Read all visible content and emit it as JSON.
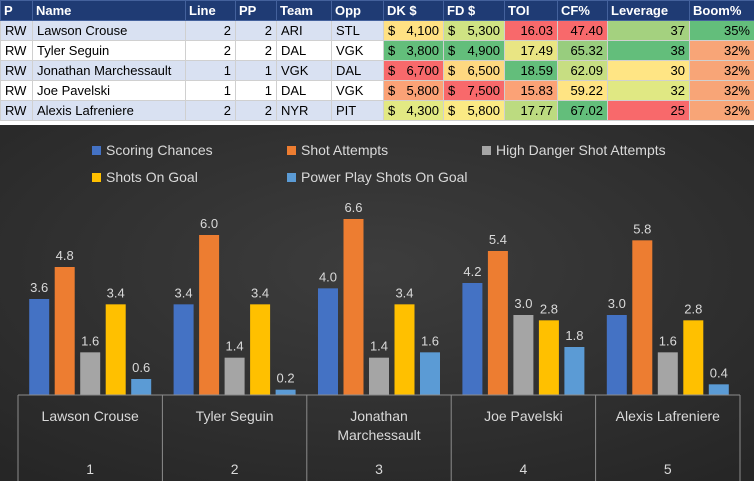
{
  "table": {
    "headers": [
      "P",
      "Name",
      "Line",
      "PP",
      "Team",
      "Opp",
      "DK $",
      "FD $",
      "TOI",
      "CF%",
      "Leverage",
      "Boom%"
    ],
    "rows": [
      {
        "pos": "RW",
        "name": "Lawson Crouse",
        "line": "2",
        "pp": "2",
        "team": "ARI",
        "opp": "STL",
        "dk": "4,100",
        "fd": "5,300",
        "toi": "16.03",
        "cf": "47.40",
        "leverage": "37",
        "boom": "35%"
      },
      {
        "pos": "RW",
        "name": "Tyler Seguin",
        "line": "2",
        "pp": "2",
        "team": "DAL",
        "opp": "VGK",
        "dk": "3,800",
        "fd": "4,900",
        "toi": "17.49",
        "cf": "65.32",
        "leverage": "38",
        "boom": "32%"
      },
      {
        "pos": "RW",
        "name": "Jonathan Marchessault",
        "line": "1",
        "pp": "1",
        "team": "VGK",
        "opp": "DAL",
        "dk": "6,700",
        "fd": "6,500",
        "toi": "18.59",
        "cf": "62.09",
        "leverage": "30",
        "boom": "32%"
      },
      {
        "pos": "RW",
        "name": "Joe Pavelski",
        "line": "1",
        "pp": "1",
        "team": "DAL",
        "opp": "VGK",
        "dk": "5,800",
        "fd": "7,500",
        "toi": "15.83",
        "cf": "59.22",
        "leverage": "32",
        "boom": "32%"
      },
      {
        "pos": "RW",
        "name": "Alexis Lafreniere",
        "line": "2",
        "pp": "2",
        "team": "NYR",
        "opp": "PIT",
        "dk": "4,300",
        "fd": "5,800",
        "toi": "17.77",
        "cf": "67.02",
        "leverage": "25",
        "boom": "32%"
      }
    ],
    "currency_symbol": "$",
    "cell_colors": {
      "dk": [
        "#ffe183",
        "#63be7b",
        "#f8696b",
        "#fba276",
        "#e2e983"
      ],
      "fd": [
        "#cfe383",
        "#63be7b",
        "#fed880",
        "#f8696b",
        "#fbea84"
      ],
      "toi": [
        "#f8696b",
        "#e9e583",
        "#63be7b",
        "#fba276",
        "#bcdb80"
      ],
      "cf": [
        "#f8696b",
        "#98cd7e",
        "#c7de82",
        "#ffe483",
        "#63be7b"
      ],
      "leverage": [
        "#a4d17f",
        "#63be7b",
        "#ffe584",
        "#e0e883",
        "#f8696b"
      ],
      "boom": [
        "#63be7b",
        "#f8a577",
        "#f8a577",
        "#f8a577",
        "#f8a577"
      ]
    }
  },
  "chart_data": {
    "type": "bar",
    "title": "",
    "xlabel": "",
    "ylabel": "",
    "ylim": [
      0,
      7.2
    ],
    "grid": false,
    "legend_position": "top",
    "categories": [
      "Lawson Crouse",
      "Tyler Seguin",
      "Jonathan Marchessault",
      "Joe Pavelski",
      "Alexis Lafreniere"
    ],
    "category_lines": [
      [
        "Lawson Crouse"
      ],
      [
        "Tyler Seguin"
      ],
      [
        "Jonathan",
        "Marchessault"
      ],
      [
        "Joe Pavelski"
      ],
      [
        "Alexis Lafreniere"
      ]
    ],
    "category_index": [
      "1",
      "2",
      "3",
      "4",
      "5"
    ],
    "series": [
      {
        "name": "Scoring Chances",
        "color": "#4472c4",
        "values": [
          3.6,
          3.4,
          4.0,
          4.2,
          3.0
        ],
        "labels": [
          "3.6",
          "3.4",
          "4.0",
          "4.2",
          "3.0"
        ]
      },
      {
        "name": "Shot Attempts",
        "color": "#ed7d31",
        "values": [
          4.8,
          6.0,
          6.6,
          5.4,
          5.8
        ],
        "labels": [
          "4.8",
          "6.0",
          "6.6",
          "5.4",
          "5.8"
        ]
      },
      {
        "name": "High Danger Shot Attempts",
        "color": "#a5a5a5",
        "values": [
          1.6,
          1.4,
          1.4,
          3.0,
          1.6
        ],
        "labels": [
          "1.6",
          "1.4",
          "1.4",
          "3.0",
          "1.6"
        ]
      },
      {
        "name": "Shots On Goal",
        "color": "#ffc000",
        "values": [
          3.4,
          3.4,
          3.4,
          2.8,
          2.8
        ],
        "labels": [
          "3.4",
          "3.4",
          "3.4",
          "2.8",
          "2.8"
        ]
      },
      {
        "name": "Power Play Shots On Goal",
        "color": "#5b9bd5",
        "values": [
          0.6,
          0.2,
          1.6,
          1.8,
          0.4
        ],
        "labels": [
          "0.6",
          "0.2",
          "1.6",
          "1.8",
          "0.4"
        ]
      }
    ],
    "colors": {
      "background_top": "#3d3d3d",
      "background_bottom": "#262626",
      "text": "#d9d9d9",
      "axis": "#8c8c8c"
    }
  }
}
